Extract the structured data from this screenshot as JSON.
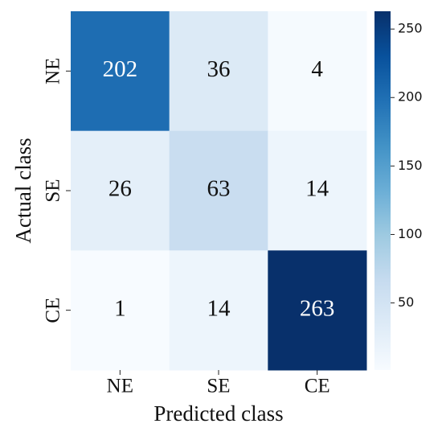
{
  "chart_data": {
    "type": "heatmap",
    "x_label": "Predicted class",
    "y_label": "Actual class",
    "x_categories": [
      "NE",
      "SE",
      "CE"
    ],
    "y_categories": [
      "NE",
      "SE",
      "CE"
    ],
    "values": [
      [
        202,
        36,
        4
      ],
      [
        26,
        63,
        14
      ],
      [
        1,
        14,
        263
      ]
    ],
    "colormap": "Blues",
    "clim": [
      1,
      263
    ],
    "cticks": [
      50,
      100,
      150,
      200,
      250
    ]
  }
}
